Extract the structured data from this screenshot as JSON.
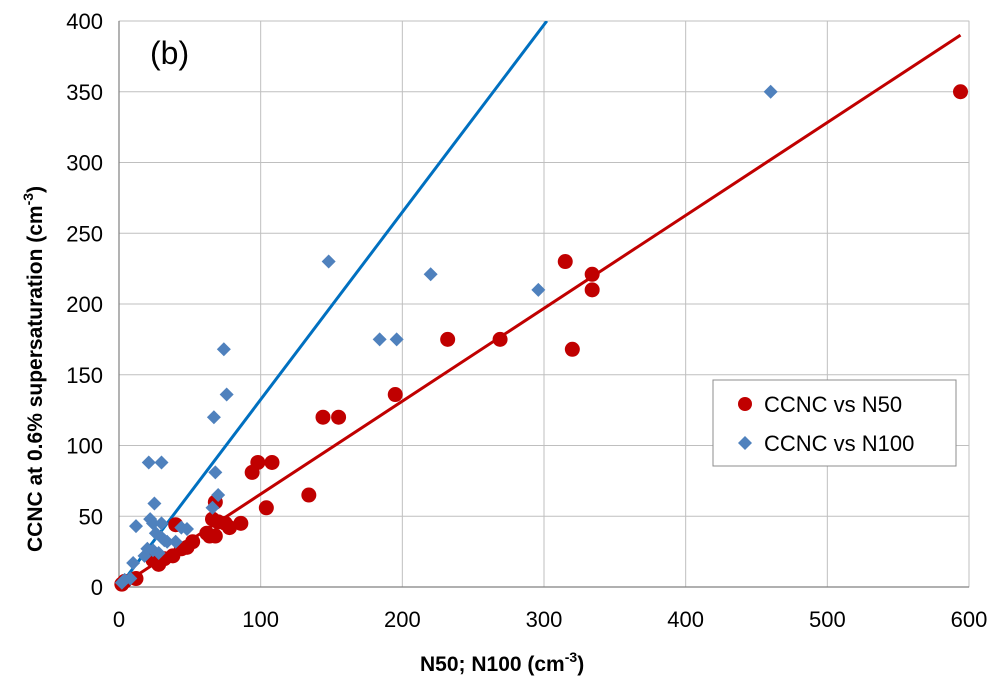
{
  "chart_data": {
    "type": "scatter",
    "panel_label": "(b)",
    "xlabel": "N50; N100  (cm",
    "xlabel_sup": "-3",
    "xlabel_tail": ")",
    "ylabel": "CCNC at 0.6% supersaturation (cm",
    "ylabel_sup": "-3",
    "ylabel_tail": ")",
    "xlim": [
      0,
      600
    ],
    "ylim": [
      0,
      400
    ],
    "xticks": [
      0,
      100,
      200,
      300,
      400,
      500,
      600
    ],
    "yticks": [
      0,
      50,
      100,
      150,
      200,
      250,
      300,
      350,
      400
    ],
    "grid": true,
    "legend_position": "right",
    "series": [
      {
        "name": "CCNC vs N50",
        "marker": "circle",
        "color": "#c00000",
        "points": [
          [
            2,
            2
          ],
          [
            4,
            4
          ],
          [
            12,
            6
          ],
          [
            24,
            19
          ],
          [
            28,
            16
          ],
          [
            32,
            20
          ],
          [
            38,
            22
          ],
          [
            40,
            44
          ],
          [
            44,
            27
          ],
          [
            48,
            28
          ],
          [
            52,
            32
          ],
          [
            62,
            38
          ],
          [
            64,
            36
          ],
          [
            66,
            48
          ],
          [
            68,
            36
          ],
          [
            68,
            60
          ],
          [
            70,
            46
          ],
          [
            75,
            45
          ],
          [
            78,
            42
          ],
          [
            86,
            45
          ],
          [
            94,
            81
          ],
          [
            98,
            88
          ],
          [
            104,
            56
          ],
          [
            108,
            88
          ],
          [
            134,
            65
          ],
          [
            144,
            120
          ],
          [
            155,
            120
          ],
          [
            195,
            136
          ],
          [
            232,
            175
          ],
          [
            269,
            175
          ],
          [
            315,
            230
          ],
          [
            320,
            168
          ],
          [
            334,
            221
          ],
          [
            334,
            210
          ],
          [
            594,
            350
          ]
        ],
        "trendline": [
          [
            0,
            0
          ],
          [
            594,
            390
          ]
        ]
      },
      {
        "name": "CCNC vs N100",
        "marker": "diamond",
        "color": "#4f81bd",
        "points": [
          [
            2,
            3
          ],
          [
            4,
            5
          ],
          [
            8,
            6
          ],
          [
            10,
            17
          ],
          [
            12,
            43
          ],
          [
            18,
            22
          ],
          [
            20,
            27
          ],
          [
            21,
            88
          ],
          [
            22,
            48
          ],
          [
            24,
            26
          ],
          [
            24,
            45
          ],
          [
            25,
            59
          ],
          [
            26,
            38
          ],
          [
            28,
            24
          ],
          [
            30,
            88
          ],
          [
            30,
            35
          ],
          [
            30,
            45
          ],
          [
            32,
            33
          ],
          [
            34,
            32
          ],
          [
            40,
            32
          ],
          [
            44,
            42
          ],
          [
            48,
            41
          ],
          [
            66,
            56
          ],
          [
            67,
            120
          ],
          [
            68,
            81
          ],
          [
            70,
            65
          ],
          [
            74,
            168
          ],
          [
            76,
            136
          ],
          [
            148,
            230
          ],
          [
            184,
            175
          ],
          [
            196,
            175
          ],
          [
            220,
            221
          ],
          [
            296,
            210
          ],
          [
            460,
            350
          ]
        ],
        "trendline": [
          [
            0,
            0
          ],
          [
            302,
            400
          ]
        ]
      }
    ]
  }
}
